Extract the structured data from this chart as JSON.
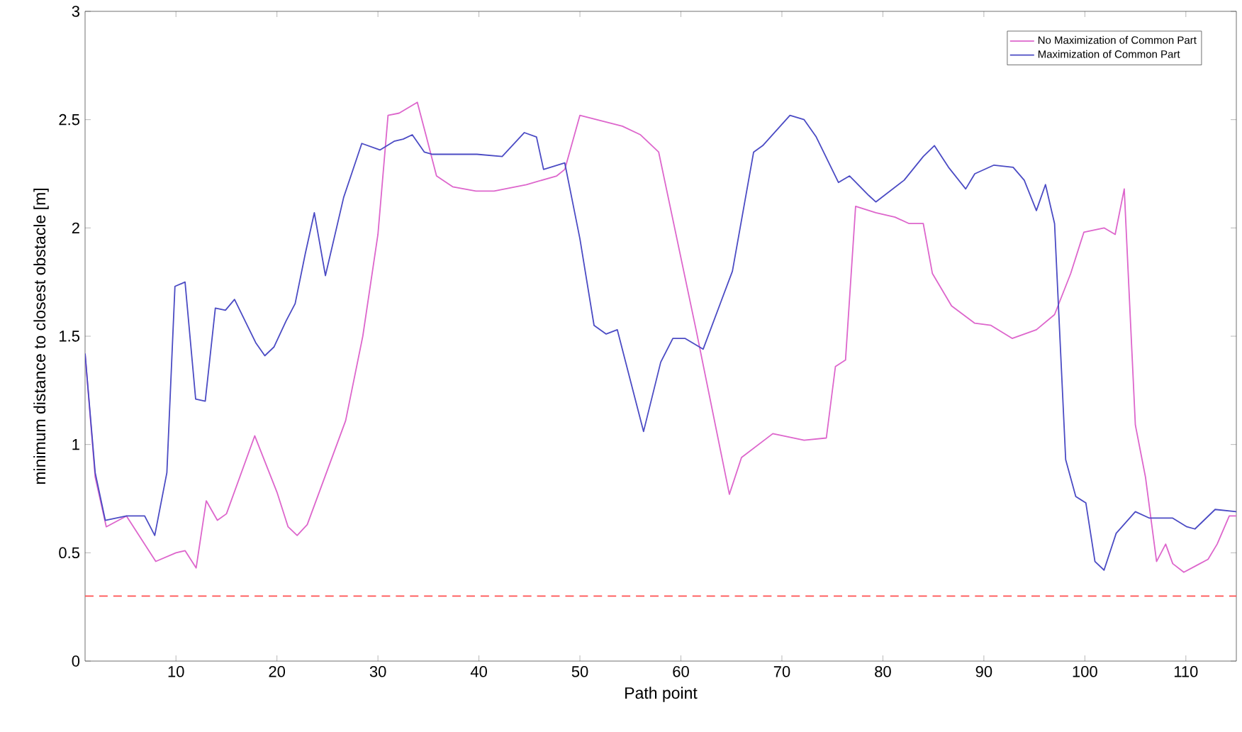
{
  "chart_data": {
    "type": "line",
    "xlabel": "Path point",
    "ylabel": "minimum distance to closest obstacle [m]",
    "xlim": [
      1,
      115
    ],
    "ylim": [
      0,
      3
    ],
    "xticks": [
      10,
      20,
      30,
      40,
      50,
      60,
      70,
      80,
      90,
      100,
      110
    ],
    "yticks": [
      0,
      0.5,
      1,
      1.5,
      2,
      2.5,
      3
    ],
    "legend": "top right",
    "marker": "none",
    "line_style": "solid",
    "ref_lines": [
      {
        "axis": "y",
        "value": 0.3,
        "color": "#ff5050",
        "line_style": "dashed"
      }
    ],
    "series": [
      {
        "name": "No Maximization of Common Part",
        "color": "#dd66cc",
        "x": [
          1,
          2,
          3.1,
          5.1,
          8,
          10,
          10.9,
          12,
          13,
          14.1,
          15,
          17.8,
          20,
          21.1,
          22,
          23,
          24.9,
          26.8,
          28.5,
          30,
          31,
          32.1,
          33.9,
          34.8,
          35.8,
          37.4,
          39.7,
          41.5,
          44.7,
          47.7,
          48.5,
          50,
          54.2,
          56,
          57.8,
          61.5,
          64.8,
          66,
          69.1,
          72.2,
          74.4,
          75.3,
          76.3,
          77.3,
          79.3,
          81.2,
          82.6,
          84,
          84.9,
          86.8,
          89.1,
          90.7,
          92.8,
          95.2,
          97,
          98.6,
          99.9,
          101.9,
          103,
          103.9,
          105,
          106,
          107.1,
          108,
          108.7,
          109.8,
          111,
          112.2,
          113.1,
          114.3,
          115
        ],
        "values": [
          1.42,
          0.85,
          0.62,
          0.67,
          0.46,
          0.5,
          0.51,
          0.43,
          0.74,
          0.65,
          0.68,
          1.04,
          0.78,
          0.62,
          0.58,
          0.63,
          0.87,
          1.11,
          1.5,
          1.97,
          2.52,
          2.53,
          2.58,
          2.42,
          2.24,
          2.19,
          2.17,
          2.17,
          2.2,
          2.24,
          2.27,
          2.52,
          2.47,
          2.43,
          2.35,
          1.53,
          0.77,
          0.94,
          1.05,
          1.02,
          1.03,
          1.36,
          1.39,
          2.1,
          2.07,
          2.05,
          2.02,
          2.02,
          1.79,
          1.64,
          1.56,
          1.55,
          1.49,
          1.53,
          1.6,
          1.79,
          1.98,
          2.0,
          1.97,
          2.18,
          1.09,
          0.85,
          0.46,
          0.54,
          0.45,
          0.41,
          0.44,
          0.47,
          0.54,
          0.67,
          0.67
        ]
      },
      {
        "name": "Maximization of Common Part",
        "color": "#4b4bc4",
        "x": [
          1,
          2,
          3,
          5.1,
          6.9,
          7.9,
          9.1,
          9.9,
          10.9,
          11.95,
          12.9,
          13.9,
          14.9,
          15.8,
          17.9,
          18.8,
          19.7,
          20.9,
          21.8,
          22.8,
          23.7,
          24.8,
          25.7,
          26.6,
          28.4,
          30.2,
          31.6,
          32.5,
          33.4,
          34.6,
          35.4,
          39.8,
          42.3,
          44.5,
          45.7,
          46.4,
          48.5,
          50,
          51.4,
          52.6,
          53.7,
          56.3,
          58,
          59.2,
          60.4,
          62.2,
          65.1,
          67.2,
          68.1,
          70.8,
          72.2,
          73.4,
          75.6,
          76.7,
          78.6,
          79.3,
          82.1,
          84,
          85.1,
          86.5,
          88.2,
          89.1,
          91,
          92.9,
          94,
          95.2,
          96.1,
          97,
          98.1,
          99.1,
          100.1,
          101,
          101.9,
          103.1,
          105,
          106.4,
          108.7,
          110.1,
          110.9,
          112.9,
          115
        ],
        "values": [
          1.42,
          0.87,
          0.65,
          0.67,
          0.67,
          0.58,
          0.87,
          1.73,
          1.75,
          1.21,
          1.2,
          1.63,
          1.62,
          1.67,
          1.47,
          1.41,
          1.45,
          1.57,
          1.65,
          1.88,
          2.07,
          1.78,
          1.96,
          2.14,
          2.39,
          2.36,
          2.4,
          2.41,
          2.43,
          2.35,
          2.34,
          2.34,
          2.33,
          2.44,
          2.42,
          2.27,
          2.3,
          1.95,
          1.55,
          1.51,
          1.53,
          1.06,
          1.38,
          1.49,
          1.49,
          1.44,
          1.8,
          2.35,
          2.38,
          2.52,
          2.5,
          2.42,
          2.21,
          2.24,
          2.15,
          2.12,
          2.22,
          2.33,
          2.38,
          2.28,
          2.18,
          2.25,
          2.29,
          2.28,
          2.22,
          2.08,
          2.2,
          2.02,
          0.93,
          0.76,
          0.73,
          0.46,
          0.42,
          0.59,
          0.69,
          0.66,
          0.66,
          0.62,
          0.61,
          0.7,
          0.69
        ]
      }
    ]
  }
}
